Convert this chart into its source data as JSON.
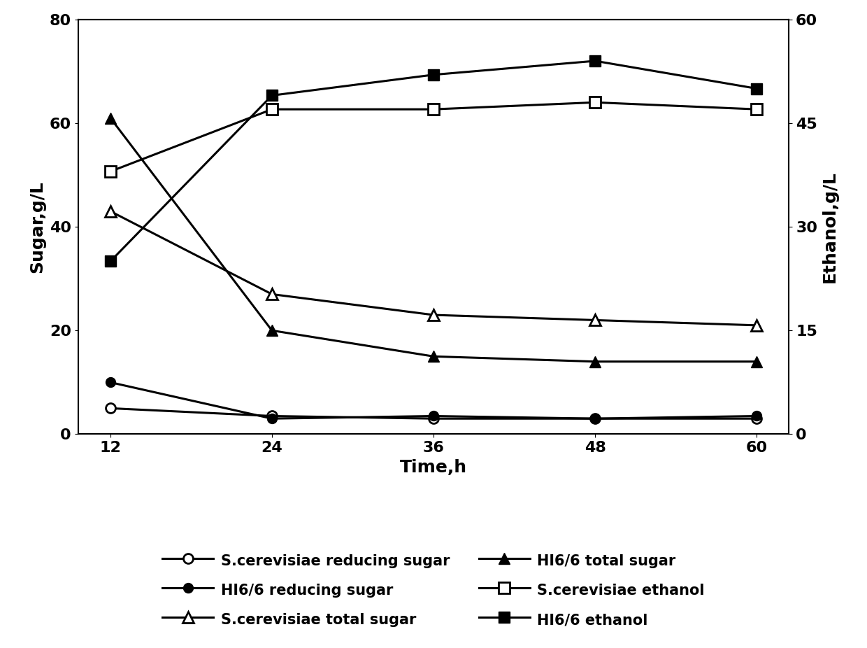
{
  "time": [
    12,
    24,
    36,
    48,
    60
  ],
  "sc_reducing_sugar": [
    5,
    3.5,
    3,
    3,
    3
  ],
  "hi6_reducing_sugar": [
    10,
    3,
    3.5,
    3,
    3.5
  ],
  "sc_total_sugar": [
    43,
    27,
    23,
    22,
    21
  ],
  "hi6_total_sugar": [
    61,
    20,
    15,
    14,
    14
  ],
  "sc_ethanol": [
    38,
    47,
    47,
    48,
    47
  ],
  "hi6_ethanol": [
    25,
    49,
    52,
    54,
    50
  ],
  "ylabel_left": "Sugar,g/L",
  "ylabel_right": "Ethanol,g/L",
  "xlabel": "Time,h",
  "ylim_left": [
    0,
    80
  ],
  "ylim_right": [
    0,
    60
  ],
  "yticks_left": [
    0,
    20,
    40,
    60,
    80
  ],
  "yticks_right": [
    0,
    15,
    30,
    45,
    60
  ],
  "xticks": [
    12,
    24,
    36,
    48,
    60
  ],
  "legend_labels": [
    "S.cerevisiae reducing sugar",
    "HI6/6 reducing sugar",
    "S.cerevisiae total sugar",
    "HI6/6 total sugar",
    "S.cerevisiae ethanol",
    "HI6/6 ethanol"
  ],
  "line_color": "#000000",
  "linewidth": 2.2,
  "markersize": 10
}
